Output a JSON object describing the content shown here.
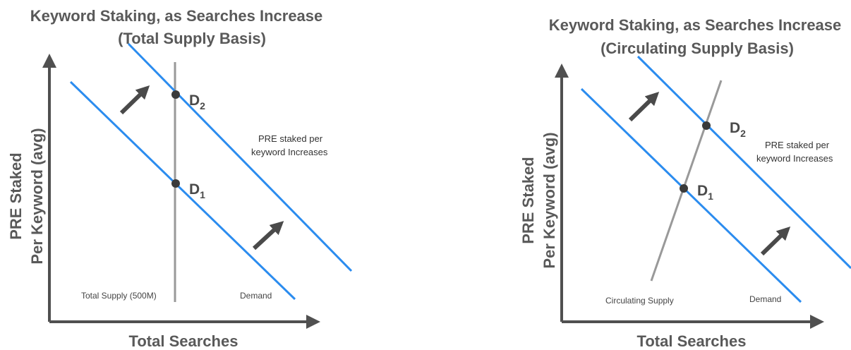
{
  "colors": {
    "demand": "#2b8cef",
    "supply": "#999999",
    "axis": "#505050",
    "point": "#3a3a3a",
    "text": "#595959"
  },
  "panels": [
    {
      "title_line1": "Keyword Staking, as Searches Increase",
      "title_line2": "(Total Supply Basis)",
      "y_label_line1": "PRE Staked",
      "y_label_line2": "Per Keyword (avg)",
      "x_label": "Total Searches",
      "point1": {
        "letter": "D",
        "sub": "1"
      },
      "point2": {
        "letter": "D",
        "sub": "2"
      },
      "note_line1": "PRE staked per",
      "note_line2": "keyword Increases",
      "supply_label": "Total Supply (500M)",
      "demand_label": "Demand"
    },
    {
      "title_line1": "Keyword Staking, as Searches Increase",
      "title_line2": "(Circulating Supply Basis)",
      "y_label_line1": "PRE Staked",
      "y_label_line2": "Per Keyword (avg)",
      "x_label": "Total Searches",
      "point1": {
        "letter": "D",
        "sub": "1"
      },
      "point2": {
        "letter": "D",
        "sub": "2"
      },
      "note_line1": "PRE staked per",
      "note_line2": "keyword Increases",
      "supply_label": "Circulating Supply",
      "demand_label": "Demand"
    }
  ]
}
